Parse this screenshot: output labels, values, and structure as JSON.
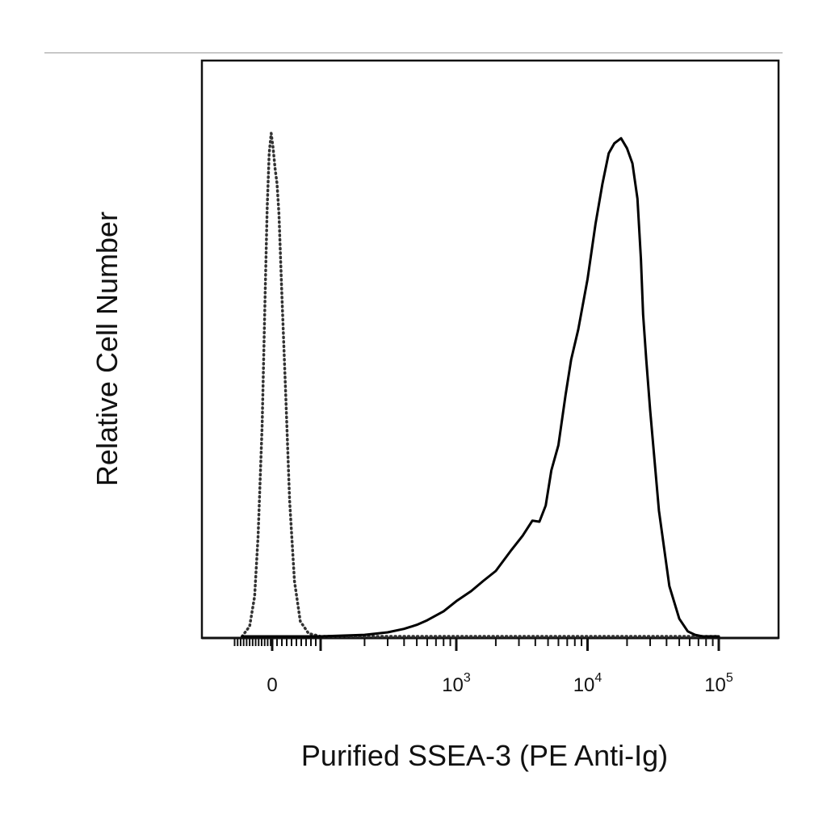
{
  "chart_data": {
    "type": "line",
    "xlabel": "Purified SSEA-3 (PE Anti-Ig)",
    "ylabel": "Relative Cell Number",
    "x_scale": "biexponential",
    "x_ticks": [
      {
        "value": 0,
        "base": "0",
        "exp": ""
      },
      {
        "value": 1000,
        "base": "10",
        "exp": "3"
      },
      {
        "value": 10000,
        "base": "10",
        "exp": "4"
      },
      {
        "value": 100000,
        "base": "10",
        "exp": "5"
      }
    ],
    "ylim": [
      0,
      1
    ],
    "grid": false,
    "legend": "none",
    "series": [
      {
        "style": "dotted",
        "color": "#333333",
        "x": [
          -60,
          -45,
          -35,
          -28,
          -20,
          -14,
          -10,
          -6,
          -2,
          2,
          6,
          10,
          14,
          20,
          28,
          36,
          46,
          58,
          75,
          100,
          140,
          200,
          300,
          500,
          1000,
          3000,
          10000,
          30000,
          100000
        ],
        "y": [
          0.0,
          0.02,
          0.08,
          0.2,
          0.42,
          0.68,
          0.85,
          0.96,
          1.0,
          0.97,
          0.93,
          0.9,
          0.84,
          0.68,
          0.48,
          0.27,
          0.11,
          0.03,
          0.006,
          0.0,
          0.0,
          0.0,
          0.0,
          0.0,
          0.0,
          0.0,
          0.0,
          0.0,
          0.0
        ]
      },
      {
        "style": "solid",
        "color": "#000000",
        "x": [
          -60,
          0,
          100,
          200,
          300,
          400,
          500,
          600,
          800,
          1000,
          1300,
          1600,
          2000,
          2600,
          3200,
          3800,
          4300,
          4800,
          5300,
          6000,
          6800,
          7500,
          8500,
          10000,
          11500,
          13000,
          14500,
          16000,
          18000,
          20000,
          22000,
          24000,
          25500,
          26500,
          28000,
          30000,
          35000,
          42000,
          50000,
          58000,
          66000,
          75000,
          90000,
          100000
        ],
        "y": [
          0.0,
          0.0,
          0.0,
          0.003,
          0.008,
          0.015,
          0.023,
          0.032,
          0.05,
          0.07,
          0.09,
          0.11,
          0.13,
          0.17,
          0.2,
          0.23,
          0.228,
          0.26,
          0.33,
          0.38,
          0.48,
          0.55,
          0.61,
          0.71,
          0.82,
          0.9,
          0.96,
          0.98,
          0.99,
          0.97,
          0.94,
          0.87,
          0.75,
          0.64,
          0.55,
          0.45,
          0.25,
          0.1,
          0.035,
          0.01,
          0.003,
          0.0,
          0.0,
          0.0
        ]
      }
    ]
  }
}
